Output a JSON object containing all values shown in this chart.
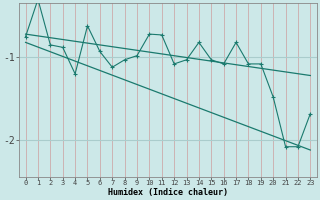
{
  "xlabel": "Humidex (Indice chaleur)",
  "bg_color": "#cce8e8",
  "line_color": "#1a7a6e",
  "grid_color": "#aacccc",
  "grid_color_v": "#ccaaaa",
  "xlim": [
    -0.5,
    23.5
  ],
  "ylim": [
    -2.45,
    -0.35
  ],
  "yticks": [
    -2,
    -1
  ],
  "ytick_labels": [
    "-2",
    "-1"
  ],
  "xticks": [
    0,
    1,
    2,
    3,
    4,
    5,
    6,
    7,
    8,
    9,
    10,
    11,
    12,
    13,
    14,
    15,
    16,
    17,
    18,
    19,
    20,
    21,
    22,
    23
  ],
  "series1_x": [
    0,
    1,
    2,
    3,
    4,
    5,
    6,
    7,
    8,
    9,
    10,
    11,
    12,
    13,
    14,
    15,
    16,
    17,
    18,
    19,
    20,
    21,
    22,
    23
  ],
  "series1_y": [
    -0.75,
    -0.3,
    -0.85,
    -0.88,
    -1.2,
    -0.62,
    -0.93,
    -1.12,
    -1.03,
    -0.98,
    -0.72,
    -0.73,
    -1.08,
    -1.03,
    -0.82,
    -1.03,
    -1.08,
    -0.82,
    -1.08,
    -1.08,
    -1.48,
    -2.08,
    -2.08,
    -1.68
  ],
  "trend1_x": [
    0,
    23
  ],
  "trend1_y": [
    -0.72,
    -1.22
  ],
  "trend2_x": [
    0,
    23
  ],
  "trend2_y": [
    -0.82,
    -2.12
  ],
  "fontsize_xlabel": 6,
  "fontsize_ytick": 7,
  "fontsize_xtick": 5
}
